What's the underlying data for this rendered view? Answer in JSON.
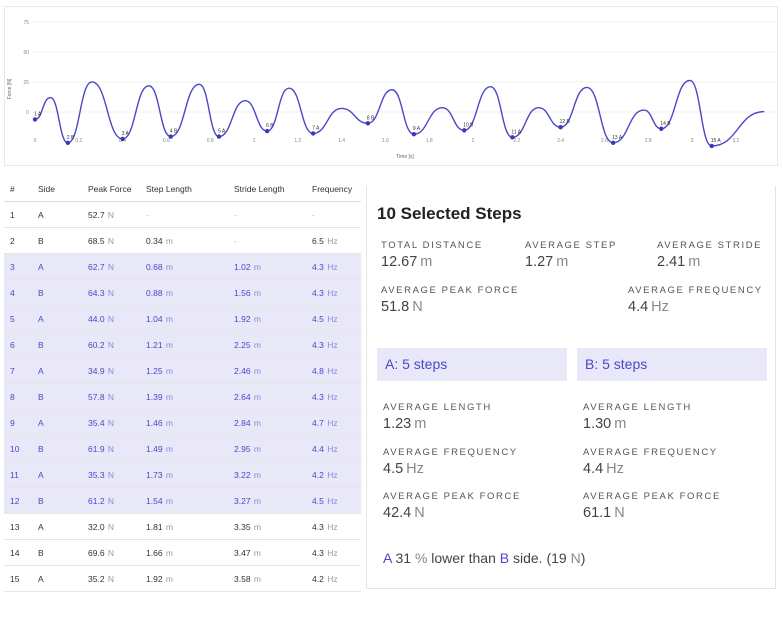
{
  "chart": {
    "ylabel": "Force [N]",
    "xlabel": "Time [s]",
    "y_ticks": [
      "75",
      "50",
      "25",
      "0"
    ],
    "x_ticks": [
      "0",
      "0.2",
      "0.4",
      "0.6",
      "0.8",
      "1",
      "1.2",
      "1.4",
      "1.6",
      "1.8",
      "2",
      "2.2",
      "2.4",
      "2.6",
      "2.8",
      "3",
      "3.2"
    ],
    "step_markers": [
      "1 A",
      "2 B",
      "3 A",
      "4 B",
      "5 A",
      "6 B",
      "7 A",
      "8 B",
      "9 A",
      "10 B",
      "11 A",
      "12 B",
      "13 A",
      "14 B",
      "15 A"
    ],
    "line_color": "#4a48c8",
    "marker_color": "#3b39b8"
  },
  "table": {
    "headers": [
      "#",
      "Side",
      "Peak Force",
      "Step Length",
      "Stride Length",
      "Frequency"
    ],
    "rows": [
      {
        "num": "1",
        "side": "A",
        "force": "52.7",
        "force_u": "N",
        "step": "-",
        "step_u": "",
        "stride": "-",
        "stride_u": "",
        "freq": "-",
        "freq_u": "",
        "selected": false
      },
      {
        "num": "2",
        "side": "B",
        "force": "68.5",
        "force_u": "N",
        "step": "0.34",
        "step_u": "m",
        "stride": "-",
        "stride_u": "",
        "freq": "6.5",
        "freq_u": "Hz",
        "selected": false
      },
      {
        "num": "3",
        "side": "A",
        "force": "62.7",
        "force_u": "N",
        "step": "0.68",
        "step_u": "m",
        "stride": "1.02",
        "stride_u": "m",
        "freq": "4.3",
        "freq_u": "Hz",
        "selected": true
      },
      {
        "num": "4",
        "side": "B",
        "force": "64.3",
        "force_u": "N",
        "step": "0.88",
        "step_u": "m",
        "stride": "1.56",
        "stride_u": "m",
        "freq": "4.3",
        "freq_u": "Hz",
        "selected": true
      },
      {
        "num": "5",
        "side": "A",
        "force": "44.0",
        "force_u": "N",
        "step": "1.04",
        "step_u": "m",
        "stride": "1.92",
        "stride_u": "m",
        "freq": "4.5",
        "freq_u": "Hz",
        "selected": true
      },
      {
        "num": "6",
        "side": "B",
        "force": "60.2",
        "force_u": "N",
        "step": "1.21",
        "step_u": "m",
        "stride": "2.25",
        "stride_u": "m",
        "freq": "4.3",
        "freq_u": "Hz",
        "selected": true
      },
      {
        "num": "7",
        "side": "A",
        "force": "34.9",
        "force_u": "N",
        "step": "1.25",
        "step_u": "m",
        "stride": "2.46",
        "stride_u": "m",
        "freq": "4.8",
        "freq_u": "Hz",
        "selected": true
      },
      {
        "num": "8",
        "side": "B",
        "force": "57.8",
        "force_u": "N",
        "step": "1.39",
        "step_u": "m",
        "stride": "2.64",
        "stride_u": "m",
        "freq": "4.3",
        "freq_u": "Hz",
        "selected": true
      },
      {
        "num": "9",
        "side": "A",
        "force": "35.4",
        "force_u": "N",
        "step": "1.46",
        "step_u": "m",
        "stride": "2.84",
        "stride_u": "m",
        "freq": "4.7",
        "freq_u": "Hz",
        "selected": true
      },
      {
        "num": "10",
        "side": "B",
        "force": "61.9",
        "force_u": "N",
        "step": "1.49",
        "step_u": "m",
        "stride": "2.95",
        "stride_u": "m",
        "freq": "4.4",
        "freq_u": "Hz",
        "selected": true
      },
      {
        "num": "11",
        "side": "A",
        "force": "35.3",
        "force_u": "N",
        "step": "1.73",
        "step_u": "m",
        "stride": "3.22",
        "stride_u": "m",
        "freq": "4.2",
        "freq_u": "Hz",
        "selected": true
      },
      {
        "num": "12",
        "side": "B",
        "force": "61.2",
        "force_u": "N",
        "step": "1.54",
        "step_u": "m",
        "stride": "3.27",
        "stride_u": "m",
        "freq": "4.5",
        "freq_u": "Hz",
        "selected": true
      },
      {
        "num": "13",
        "side": "A",
        "force": "32.0",
        "force_u": "N",
        "step": "1.81",
        "step_u": "m",
        "stride": "3.35",
        "stride_u": "m",
        "freq": "4.3",
        "freq_u": "Hz",
        "selected": false
      },
      {
        "num": "14",
        "side": "B",
        "force": "69.6",
        "force_u": "N",
        "step": "1.66",
        "step_u": "m",
        "stride": "3.47",
        "stride_u": "m",
        "freq": "4.3",
        "freq_u": "Hz",
        "selected": false
      },
      {
        "num": "15",
        "side": "A",
        "force": "35.2",
        "force_u": "N",
        "step": "1.92",
        "step_u": "m",
        "stride": "3.58",
        "stride_u": "m",
        "freq": "4.2",
        "freq_u": "Hz",
        "selected": false
      }
    ]
  },
  "summary": {
    "title": "10 Selected Steps",
    "total_distance": {
      "label": "TOTAL DISTANCE",
      "value": "12.67",
      "unit": "m"
    },
    "average_step": {
      "label": "AVERAGE STEP",
      "value": "1.27",
      "unit": "m"
    },
    "average_stride": {
      "label": "AVERAGE STRIDE",
      "value": "2.41",
      "unit": "m"
    },
    "average_peak_force": {
      "label": "AVERAGE PEAK FORCE",
      "value": "51.8",
      "unit": "N"
    },
    "average_frequency": {
      "label": "AVERAGE FREQUENCY",
      "value": "4.4",
      "unit": "Hz"
    },
    "side_a": {
      "title": "A: 5 steps",
      "length": {
        "label": "AVERAGE LENGTH",
        "value": "1.23",
        "unit": "m"
      },
      "frequency": {
        "label": "AVERAGE FREQUENCY",
        "value": "4.5",
        "unit": "Hz"
      },
      "peak_force": {
        "label": "AVERAGE PEAK FORCE",
        "value": "42.4",
        "unit": "N"
      }
    },
    "side_b": {
      "title": "B: 5 steps",
      "length": {
        "label": "AVERAGE LENGTH",
        "value": "1.30",
        "unit": "m"
      },
      "frequency": {
        "label": "AVERAGE FREQUENCY",
        "value": "4.4",
        "unit": "Hz"
      },
      "peak_force": {
        "label": "AVERAGE PEAK FORCE",
        "value": "61.1",
        "unit": "N"
      }
    },
    "comparison": {
      "side1": "A",
      "pct": "31",
      "pct_unit": "%",
      "middle": "lower than",
      "side2": "B",
      "tail": "side. (19",
      "abs_unit": "N",
      "close": ")"
    }
  }
}
